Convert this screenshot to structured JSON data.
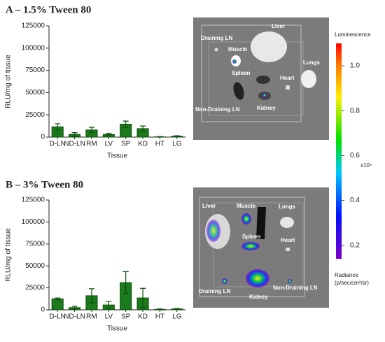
{
  "chart_data": [
    {
      "type": "bar",
      "title": "A – 1.5% Tween 80",
      "ylabel": "RLU/mg of tissue",
      "xlabel": "Tissue",
      "categories": [
        "D-LN",
        "ND-LN",
        "RM",
        "LV",
        "SP",
        "KD",
        "HT",
        "LG"
      ],
      "values": [
        11500,
        3000,
        8000,
        3000,
        14500,
        9500,
        300,
        1000
      ],
      "errors": [
        3500,
        2000,
        3000,
        1000,
        3500,
        3000,
        300,
        500
      ],
      "color": "#1b7a1b",
      "ylim": [
        0,
        125000
      ],
      "yticks": [
        0,
        25000,
        50000,
        75000,
        100000,
        125000
      ]
    },
    {
      "type": "bar",
      "title": "B – 3% Tween 80",
      "ylabel": "RLU/mg of tissue",
      "xlabel": "Tissue",
      "categories": [
        "D-LN",
        "ND-LN",
        "RM",
        "LV",
        "SP",
        "KD",
        "HT",
        "LG"
      ],
      "values": [
        12500,
        2500,
        16000,
        5500,
        31000,
        13500,
        500,
        1000
      ],
      "errors": [
        1000,
        1500,
        8000,
        4000,
        12500,
        11000,
        500,
        500
      ],
      "color": "#1b7a1b",
      "ylim": [
        0,
        125000
      ],
      "yticks": [
        0,
        25000,
        50000,
        75000,
        100000,
        125000
      ]
    }
  ],
  "images": [
    {
      "labels": [
        "Draining LN",
        "Liver",
        "Muscle",
        "Lungs",
        "Spleen",
        "Heart",
        "Non-Draining LN",
        "Kidney"
      ]
    },
    {
      "labels": [
        "Liver",
        "Muscle",
        "Lungs",
        "Spleen",
        "Heart",
        "Draining LN",
        "Non-Draining LN",
        "Kidney"
      ]
    }
  ],
  "colorbar": {
    "title": "Luminescence",
    "lim": [
      0.14,
      1.1
    ],
    "ticks": [
      {
        "value": 1,
        "label": "1.0"
      },
      0.8,
      0.6,
      0.4,
      0.2
    ],
    "unit": "x10⁶",
    "footer": [
      "Radiance",
      "(p/sec/cm²/sr)"
    ]
  }
}
